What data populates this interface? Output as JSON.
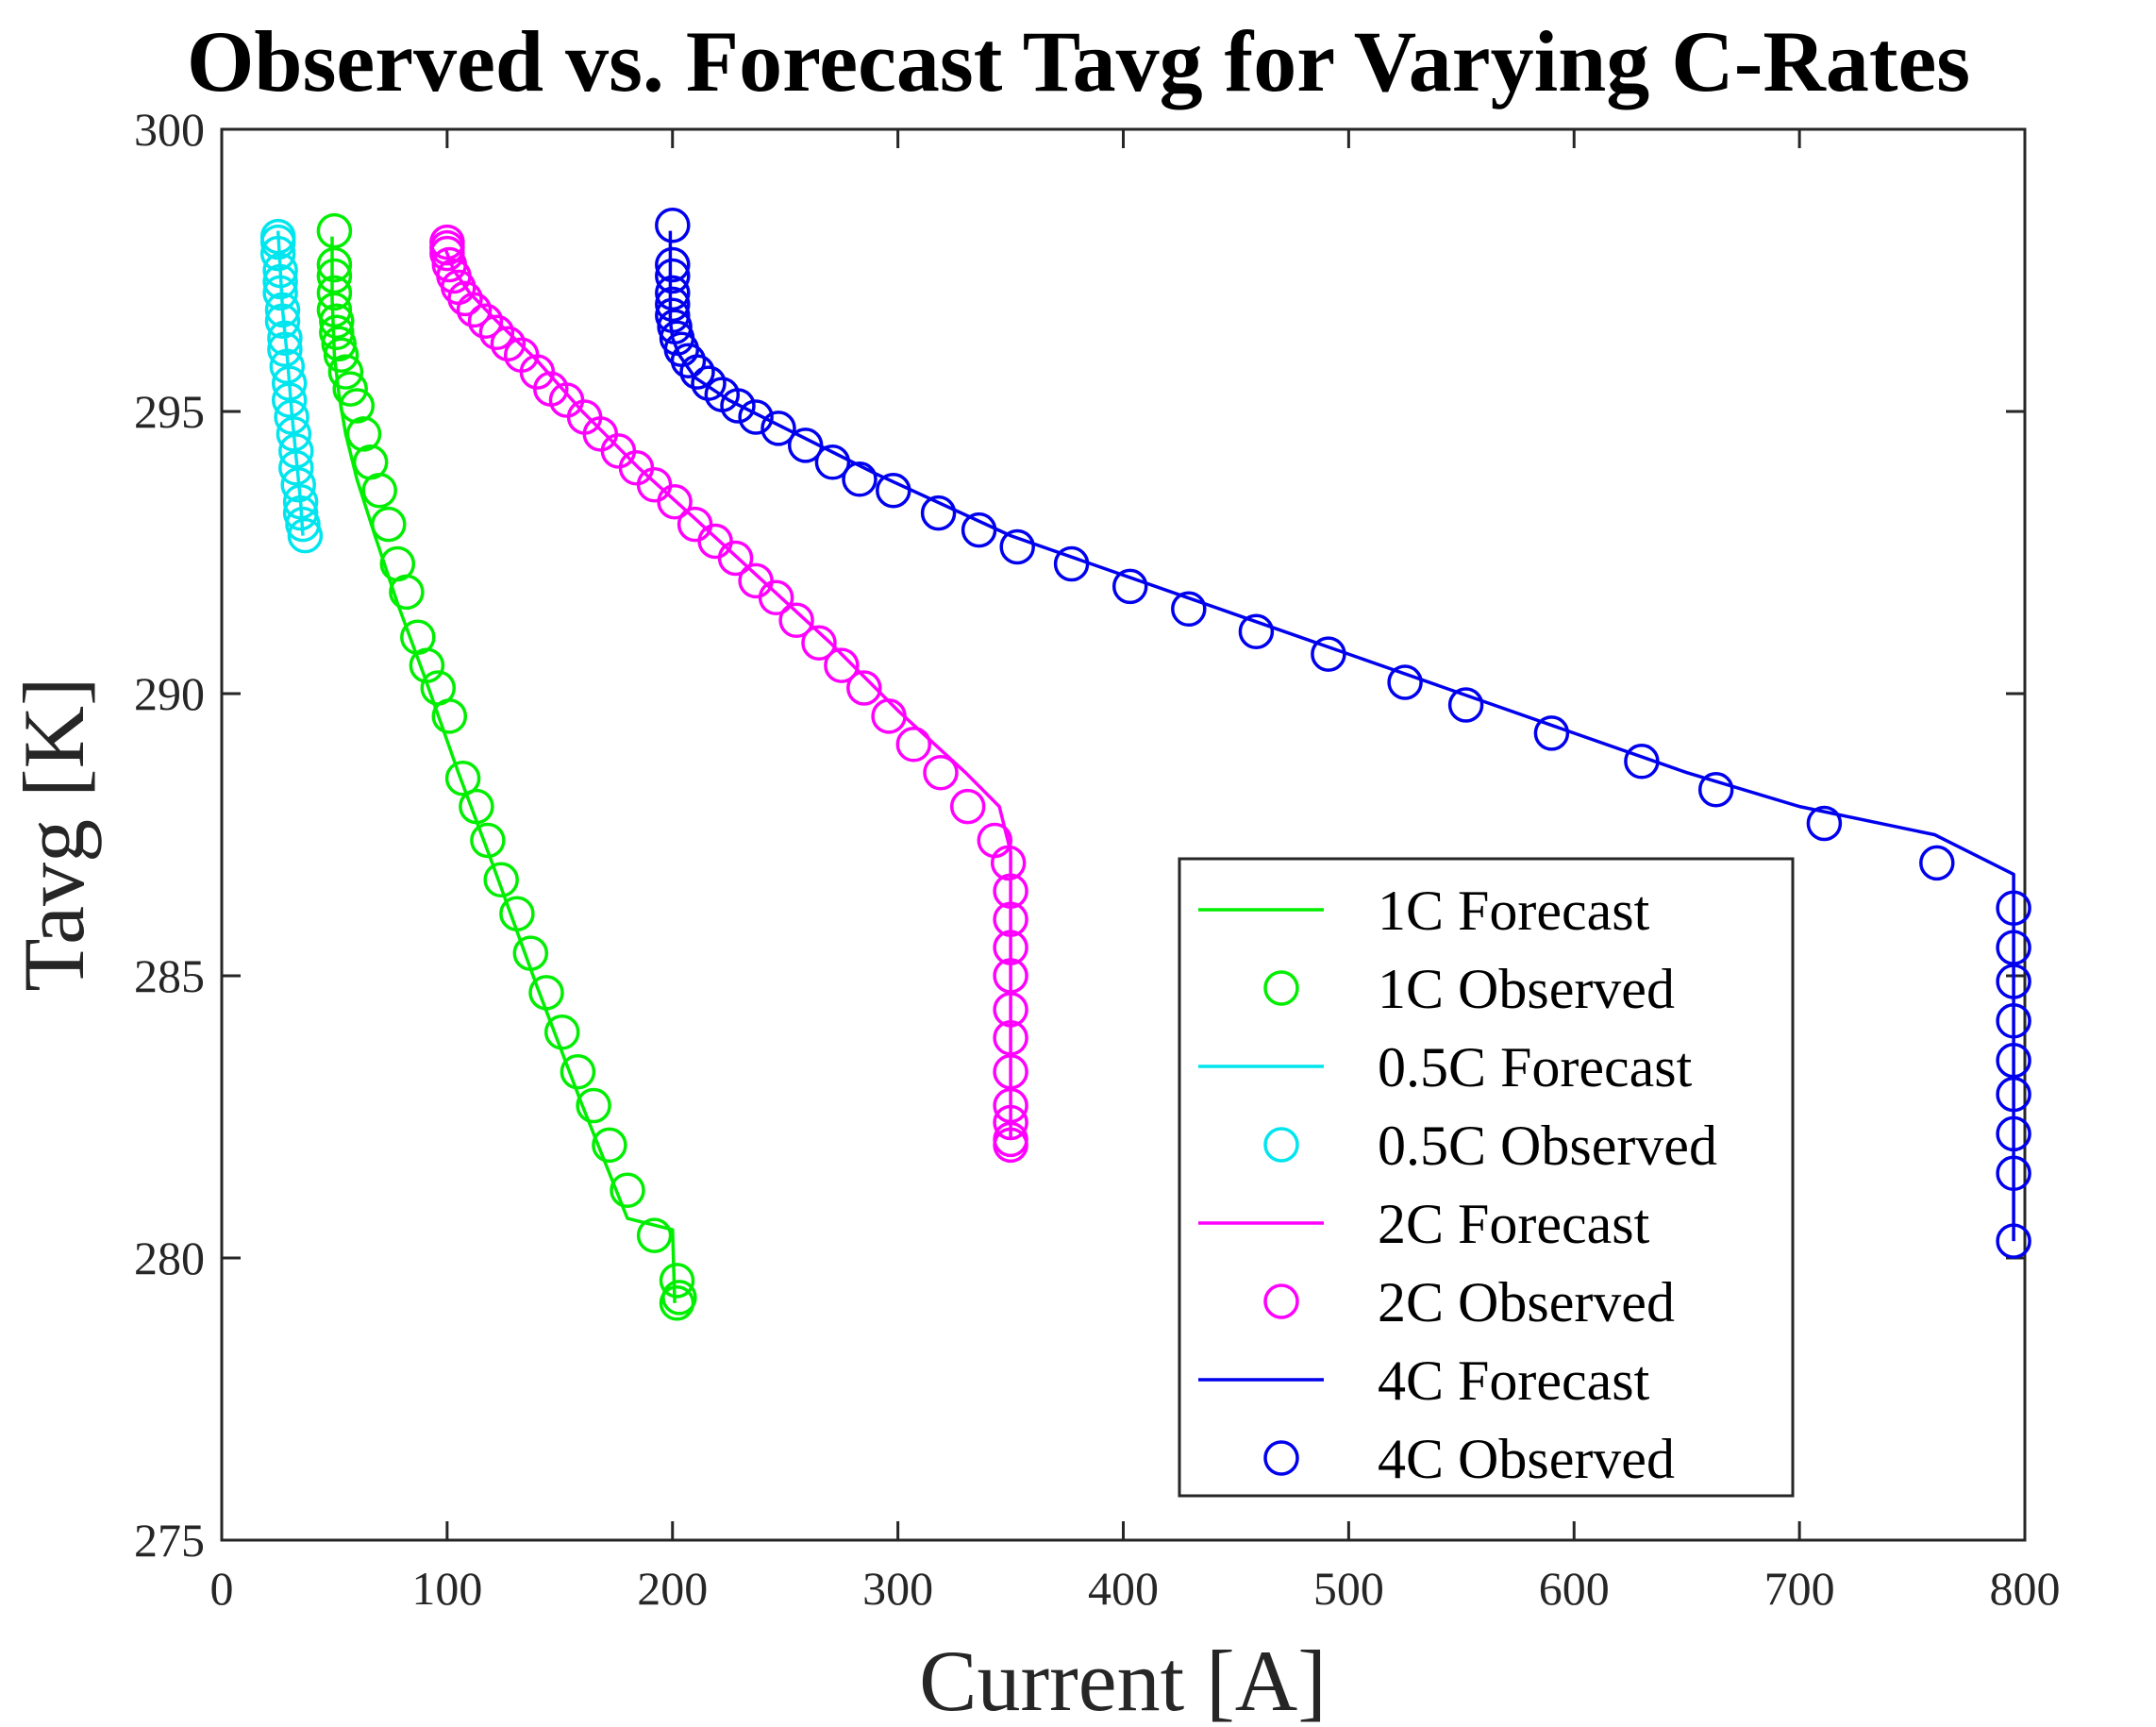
{
  "chart_data": {
    "type": "line",
    "title": "Observed vs. Forecast Tavg for Varying C-Rates",
    "xlabel": "Current [A]",
    "ylabel": "Tavg [K]",
    "xlim": [
      0,
      800
    ],
    "ylim": [
      275,
      300
    ],
    "xticks": [
      "0",
      "100",
      "200",
      "300",
      "400",
      "500",
      "600",
      "700",
      "800"
    ],
    "yticks": [
      "275",
      "280",
      "285",
      "290",
      "295",
      "300"
    ],
    "legend_position": "bottom-right",
    "series": [
      {
        "name": "1C Forecast",
        "kind": "line",
        "color": "#00ee00",
        "x": [
          49,
          49,
          50,
          52,
          55,
          60,
          68,
          78,
          90,
          105,
          120,
          140,
          160,
          180,
          200,
          201
        ],
        "y": [
          298.1,
          297.0,
          296.0,
          295.3,
          294.6,
          293.8,
          292.8,
          291.6,
          290.3,
          288.6,
          287.0,
          284.8,
          282.7,
          280.7,
          280.5,
          279.2
        ]
      },
      {
        "name": "1C Observed",
        "kind": "marker",
        "color": "#00ee00",
        "x": [
          50,
          50,
          50,
          50,
          50,
          51,
          51,
          52,
          53,
          55,
          57,
          60,
          63,
          66,
          70,
          74,
          78,
          82,
          87,
          91,
          96,
          101,
          107,
          113,
          118,
          124,
          131,
          137,
          144,
          151,
          158,
          165,
          172,
          180,
          192,
          202,
          203,
          202
        ],
        "y": [
          298.2,
          297.6,
          297.4,
          297.1,
          296.8,
          296.6,
          296.4,
          296.2,
          296.0,
          295.7,
          295.4,
          295.1,
          294.6,
          294.1,
          293.6,
          293.0,
          292.3,
          291.8,
          291.0,
          290.5,
          290.1,
          289.6,
          288.5,
          288.0,
          287.4,
          286.7,
          286.1,
          285.4,
          284.7,
          284.0,
          283.3,
          282.7,
          282.0,
          281.2,
          280.4,
          279.6,
          279.3,
          279.2
        ]
      },
      {
        "name": "0.5C Forecast",
        "kind": "line",
        "color": "#00e5ee",
        "x": [
          25,
          26,
          27,
          29,
          31,
          33,
          35,
          36
        ],
        "y": [
          298.2,
          297.5,
          296.8,
          296.0,
          295.0,
          294.2,
          293.4,
          292.8
        ]
      },
      {
        "name": "0.5C Observed",
        "kind": "marker",
        "color": "#00e5ee",
        "x": [
          25,
          25,
          25,
          26,
          26,
          26,
          27,
          27,
          28,
          28,
          29,
          30,
          30,
          31,
          32,
          33,
          33,
          34,
          35,
          35,
          36,
          37
        ],
        "y": [
          298.1,
          298.0,
          297.8,
          297.5,
          297.3,
          297.1,
          296.8,
          296.6,
          296.3,
          296.1,
          295.8,
          295.5,
          295.2,
          294.9,
          294.6,
          294.3,
          294.0,
          293.7,
          293.4,
          293.2,
          293.0,
          292.8
        ]
      },
      {
        "name": "2C Forecast",
        "kind": "line",
        "color": "#ff00ff",
        "x": [
          99,
          100,
          103,
          110,
          122,
          140,
          160,
          185,
          210,
          240,
          270,
          300,
          330,
          345,
          350,
          350
        ],
        "y": [
          297.9,
          297.8,
          297.5,
          297.1,
          296.6,
          295.9,
          295.0,
          294.0,
          293.1,
          292.0,
          290.9,
          289.7,
          288.6,
          288.0,
          287.2,
          282.1
        ]
      },
      {
        "name": "2C Observed",
        "kind": "marker",
        "color": "#ff00ff",
        "x": [
          100,
          100,
          100,
          101,
          103,
          105,
          108,
          112,
          117,
          122,
          127,
          133,
          140,
          146,
          153,
          161,
          168,
          176,
          184,
          192,
          201,
          210,
          219,
          228,
          237,
          246,
          255,
          265,
          275,
          285,
          296,
          307,
          319,
          331,
          343,
          349,
          350,
          350,
          350,
          350,
          350,
          350,
          350,
          350,
          350,
          350,
          350
        ],
        "y": [
          298.0,
          297.9,
          297.8,
          297.6,
          297.4,
          297.2,
          297.0,
          296.8,
          296.6,
          296.4,
          296.2,
          296.0,
          295.7,
          295.4,
          295.2,
          294.9,
          294.6,
          294.3,
          294.0,
          293.7,
          293.4,
          293.0,
          292.7,
          292.4,
          292.0,
          291.7,
          291.3,
          290.9,
          290.5,
          290.1,
          289.6,
          289.1,
          288.6,
          288.0,
          287.4,
          287.0,
          286.5,
          286.0,
          285.5,
          285.0,
          284.4,
          283.9,
          283.3,
          282.7,
          282.4,
          282.1,
          282.0
        ]
      },
      {
        "name": "4C Forecast",
        "kind": "line",
        "color": "#0000ee",
        "x": [
          199,
          199,
          200,
          203,
          210,
          225,
          250,
          290,
          350,
          450,
          550,
          650,
          700,
          760,
          795,
          795
        ],
        "y": [
          298.2,
          296.6,
          296.3,
          296.0,
          295.6,
          295.2,
          294.7,
          293.9,
          292.8,
          291.4,
          290.0,
          288.6,
          288.0,
          287.5,
          286.8,
          280.3
        ]
      },
      {
        "name": "4C Observed",
        "kind": "marker",
        "color": "#0000ee",
        "x": [
          200,
          200,
          200,
          200,
          200,
          200,
          201,
          202,
          204,
          207,
          211,
          216,
          222,
          229,
          237,
          247,
          259,
          271,
          283,
          298,
          318,
          336,
          353,
          377,
          403,
          429,
          459,
          491,
          525,
          552,
          590,
          630,
          663,
          711,
          761,
          795,
          795,
          795,
          795,
          795,
          795,
          795,
          795,
          795
        ],
        "y": [
          298.3,
          297.6,
          297.4,
          297.1,
          296.9,
          296.7,
          296.5,
          296.3,
          296.1,
          295.9,
          295.7,
          295.5,
          295.3,
          295.1,
          294.9,
          294.7,
          294.4,
          294.1,
          293.8,
          293.6,
          293.2,
          292.9,
          292.6,
          292.3,
          291.9,
          291.5,
          291.1,
          290.7,
          290.2,
          289.8,
          289.3,
          288.8,
          288.3,
          287.7,
          287.0,
          286.2,
          285.5,
          284.9,
          284.2,
          283.5,
          282.9,
          282.2,
          281.5,
          280.3
        ]
      }
    ]
  }
}
